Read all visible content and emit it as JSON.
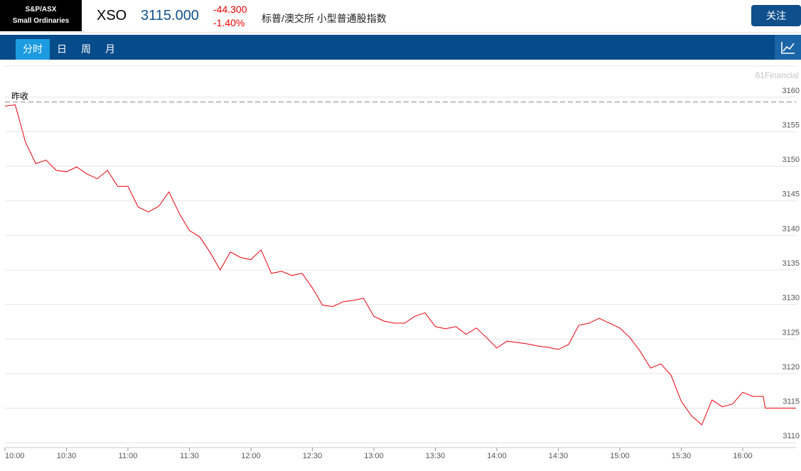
{
  "header": {
    "logo": [
      "S&P/ASX",
      "Small Ordinaries"
    ],
    "symbol": "XSO",
    "price": "3115.000",
    "change": "-44.300",
    "change_pct": "-1.40%",
    "name": "标普/澳交所 小型普通股指数",
    "button": "关注"
  },
  "tabs": [
    "分时",
    "日",
    "周",
    "月"
  ],
  "watermark": "61Financial",
  "chart_data": {
    "type": "line",
    "color": "#e8000b",
    "grid": true,
    "prev_close": 3159.3,
    "prev_close_label": "昨收",
    "x": [
      "10:00",
      "10:05",
      "10:10",
      "10:15",
      "10:20",
      "10:25",
      "10:30",
      "10:35",
      "10:40",
      "10:45",
      "10:50",
      "10:55",
      "11:00",
      "11:05",
      "11:10",
      "11:15",
      "11:20",
      "11:25",
      "11:30",
      "11:35",
      "11:40",
      "11:45",
      "11:50",
      "11:55",
      "12:00",
      "12:05",
      "12:10",
      "12:15",
      "12:20",
      "12:25",
      "12:30",
      "12:35",
      "12:40",
      "12:45",
      "12:50",
      "12:55",
      "13:00",
      "13:05",
      "13:10",
      "13:15",
      "13:20",
      "13:25",
      "13:30",
      "13:35",
      "13:40",
      "13:45",
      "13:50",
      "13:55",
      "14:00",
      "14:05",
      "14:10",
      "14:15",
      "14:20",
      "14:25",
      "14:30",
      "14:35",
      "14:40",
      "14:45",
      "14:50",
      "14:55",
      "15:00",
      "15:05",
      "15:10",
      "15:15",
      "15:20",
      "15:25",
      "15:30",
      "15:35",
      "15:40",
      "15:45",
      "15:50",
      "15:55",
      "16:00",
      "16:05",
      "16:10",
      "16:11",
      "16:26"
    ],
    "values": [
      3158.7,
      3158.9,
      3153.5,
      3150.4,
      3150.9,
      3149.4,
      3149.2,
      3149.9,
      3148.9,
      3148.2,
      3149.4,
      3147.1,
      3147.1,
      3144.1,
      3143.4,
      3144.2,
      3146.3,
      3143.2,
      3140.7,
      3139.8,
      3137.6,
      3135.0,
      3137.6,
      3136.8,
      3136.5,
      3137.9,
      3134.5,
      3134.8,
      3134.2,
      3134.5,
      3132.4,
      3129.9,
      3129.7,
      3130.4,
      3130.6,
      3130.9,
      3128.3,
      3127.6,
      3127.3,
      3127.3,
      3128.3,
      3128.8,
      3126.8,
      3126.5,
      3126.8,
      3125.7,
      3126.6,
      3125.2,
      3123.7,
      3124.7,
      3124.5,
      3124.3,
      3124.0,
      3123.8,
      3123.5,
      3124.2,
      3127.0,
      3127.3,
      3128.0,
      3127.3,
      3126.6,
      3125.2,
      3123.2,
      3120.8,
      3121.4,
      3119.8,
      3116.0,
      3113.9,
      3112.6,
      3116.2,
      3115.2,
      3115.6,
      3117.3,
      3116.7,
      3116.7,
      3115.0,
      3115.0
    ],
    "xlim": [
      "10:00",
      "16:26"
    ],
    "xticks": [
      "10:00",
      "10:30",
      "11:00",
      "11:30",
      "12:00",
      "12:30",
      "13:00",
      "13:30",
      "14:00",
      "14:30",
      "15:00",
      "15:30",
      "16:00"
    ],
    "ylim": [
      3109.3,
      3164.5
    ],
    "yticks": [
      3110,
      3115,
      3120,
      3125,
      3130,
      3135,
      3140,
      3145,
      3150,
      3155,
      3160
    ]
  }
}
